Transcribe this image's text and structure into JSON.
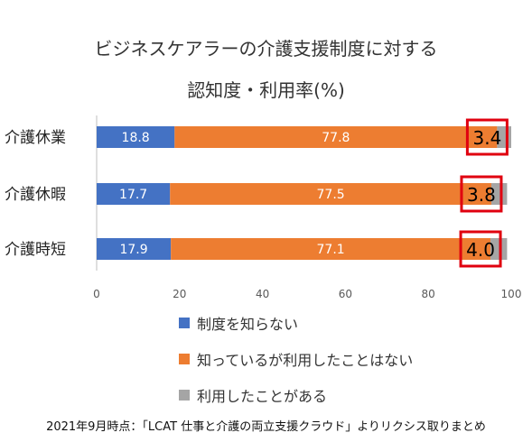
{
  "chart_data": {
    "type": "bar",
    "orientation": "horizontal",
    "stacked": true,
    "title": "ビジネスケアラーの介護支援制度に対する",
    "subtitle": "認知度・利用率(%)",
    "categories": [
      "介護休業",
      "介護休暇",
      "介護時短"
    ],
    "series": [
      {
        "name": "制度を知らない",
        "values": [
          18.8,
          17.7,
          17.9
        ]
      },
      {
        "name": "知っているが利用したことはない",
        "values": [
          77.8,
          77.5,
          77.1
        ]
      },
      {
        "name": "利用したことがある",
        "values": [
          3.4,
          3.8,
          4.0
        ]
      }
    ],
    "value_labels": [
      [
        "18.8",
        "17.7",
        "17.9"
      ],
      [
        "77.8",
        "77.5",
        "77.1"
      ],
      [
        "3.4",
        "3.8",
        "4.0"
      ]
    ],
    "xlim": [
      0,
      100
    ],
    "xticks": [
      "0",
      "20",
      "40",
      "60",
      "80",
      "100"
    ],
    "grid": false,
    "legend_position": "bottom",
    "colors": [
      "#4472C4",
      "#ED7D31",
      "#A5A5A5"
    ],
    "highlight_color": "#E0000F"
  },
  "footnote": "2021年9月時点：「LCAT 仕事と介護の両立支援クラウド」よりリクシス取りまとめ"
}
